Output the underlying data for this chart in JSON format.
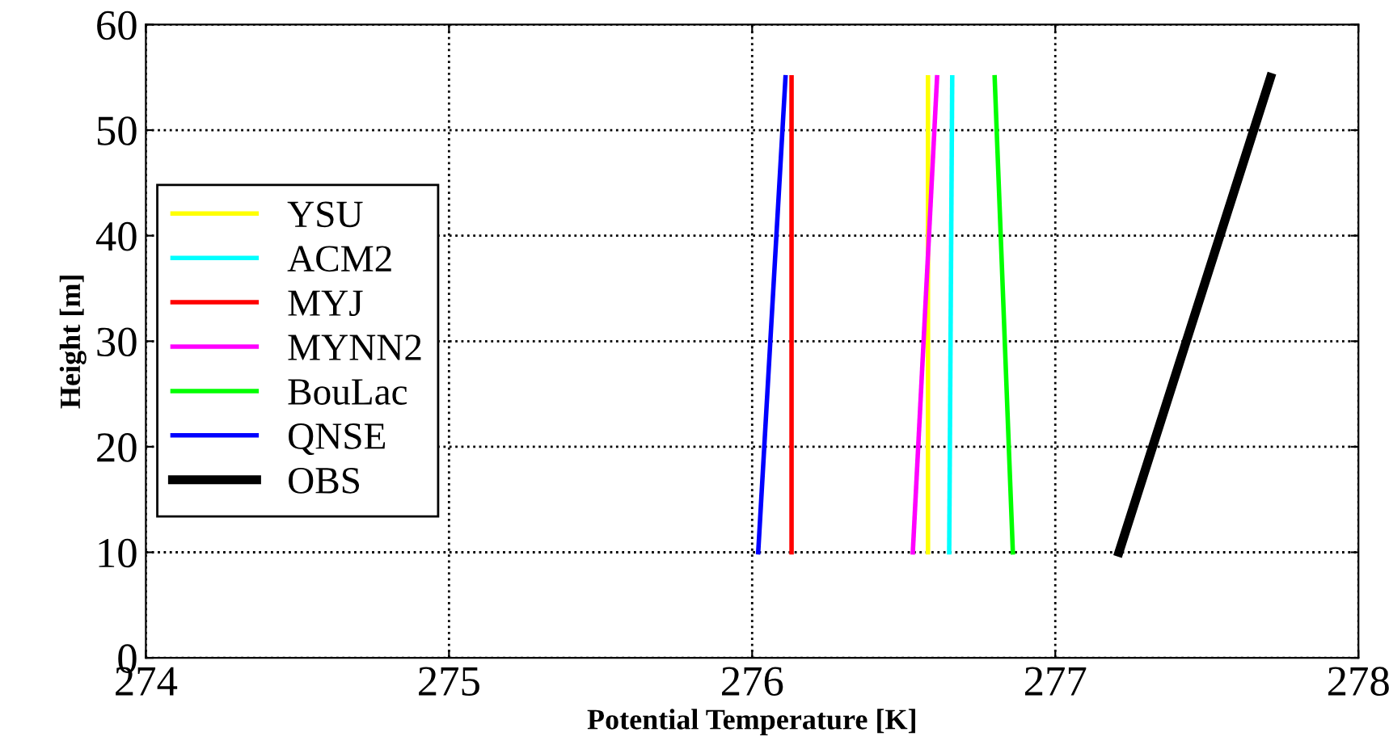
{
  "chart_data": {
    "type": "line",
    "xlabel": "Potential Temperature [K]",
    "ylabel": "Height [m]",
    "xlim": [
      274,
      278
    ],
    "xticks": [
      274,
      275,
      276,
      277,
      278
    ],
    "ylim": [
      0,
      60
    ],
    "yticks": [
      0,
      10,
      20,
      30,
      40,
      50,
      60
    ],
    "grid": true,
    "legend": "left",
    "line_style": "solid",
    "marker": "none",
    "series": [
      {
        "name": "YSU",
        "color": "#ffff00",
        "x": [
          276.58,
          276.58
        ],
        "values": [
          10,
          55
        ]
      },
      {
        "name": "ACM2",
        "color": "#00ffff",
        "x": [
          276.65,
          276.66
        ],
        "values": [
          10,
          55
        ]
      },
      {
        "name": "MYJ",
        "color": "#ff0000",
        "x": [
          276.13,
          276.13
        ],
        "values": [
          10,
          55
        ]
      },
      {
        "name": "MYNN2",
        "color": "#ff00ff",
        "x": [
          276.53,
          276.61
        ],
        "values": [
          10,
          55
        ]
      },
      {
        "name": "BouLac",
        "color": "#00ff00",
        "x": [
          276.86,
          276.8
        ],
        "values": [
          10,
          55
        ]
      },
      {
        "name": "QNSE",
        "color": "#0000ff",
        "x": [
          276.02,
          276.11
        ],
        "values": [
          10,
          55
        ]
      },
      {
        "name": "OBS",
        "color": "#000000",
        "x": [
          277.21,
          277.71
        ],
        "values": [
          10,
          55
        ]
      }
    ]
  }
}
